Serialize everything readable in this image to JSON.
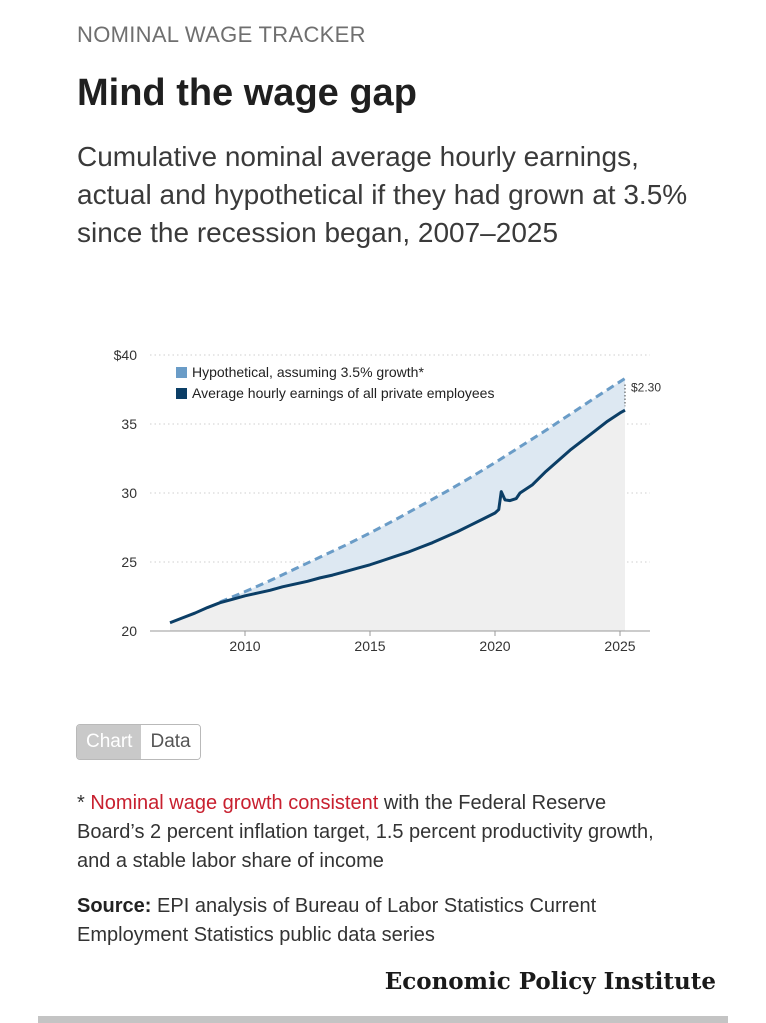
{
  "header": {
    "kicker": "NOMINAL WAGE TRACKER",
    "title": "Mind the wage gap",
    "subtitle": "Cumulative nominal average hourly earnings, actual and hypothetical if they had grown at 3.5% since the recession began, 2007–2025"
  },
  "toggle": {
    "chart_label": "Chart",
    "data_label": "Data"
  },
  "footnote": {
    "marker": "* ",
    "link_text": "Nominal wage growth consistent",
    "rest": " with the Federal Reserve Board’s 2 percent inflation target, 1.5 percent productivity growth, and a stable labor share of income"
  },
  "source": {
    "label": "Source:",
    "text": " EPI analysis of Bureau of Labor Statistics Current Employment Statistics public data series"
  },
  "brand": "Economic Policy Institute",
  "colors": {
    "hypothetical": "#6a9cc7",
    "actual": "#0b3e66",
    "gap_fill": "#dde8f2",
    "under_fill": "#efefef"
  },
  "chart_data": {
    "type": "line",
    "title": "",
    "xlabel": "",
    "ylabel": "",
    "xlim": [
      2006.2,
      2026.2
    ],
    "ylim": [
      20,
      40
    ],
    "x_ticks": [
      2010,
      2015,
      2020,
      2025
    ],
    "x_tick_labels": [
      "2010",
      "2015",
      "2020",
      "2025"
    ],
    "y_ticks": [
      20,
      25,
      30,
      35,
      40
    ],
    "y_tick_labels": [
      "20",
      "25",
      "30",
      "35",
      "$40"
    ],
    "legend": [
      {
        "name": "Hypothetical, assuming 3.5% growth*",
        "color": "#6a9cc7",
        "style": "dashed"
      },
      {
        "name": "Average hourly earnings of all private employees",
        "color": "#0b3e66",
        "style": "solid"
      }
    ],
    "annotation": {
      "text": "$2.30",
      "x": 2025.2
    },
    "series": [
      {
        "name": "Hypothetical, assuming 3.5% growth*",
        "style": "dashed",
        "x": [
          2009.0,
          2010.0,
          2011.0,
          2012.0,
          2013.0,
          2014.0,
          2015.0,
          2016.0,
          2017.0,
          2018.0,
          2019.0,
          2020.0,
          2021.0,
          2022.0,
          2023.0,
          2024.0,
          2025.2
        ],
        "values": [
          22.1,
          22.85,
          23.65,
          24.5,
          25.35,
          26.2,
          27.1,
          28.05,
          29.05,
          30.05,
          31.1,
          32.2,
          33.35,
          34.5,
          35.7,
          36.9,
          38.3
        ]
      },
      {
        "name": "Average hourly earnings of all private employees",
        "style": "solid",
        "x": [
          2007.0,
          2007.5,
          2008.0,
          2008.5,
          2009.0,
          2009.5,
          2010.0,
          2010.5,
          2011.0,
          2011.5,
          2012.0,
          2012.5,
          2013.0,
          2013.5,
          2014.0,
          2014.5,
          2015.0,
          2015.5,
          2016.0,
          2016.5,
          2017.0,
          2017.5,
          2018.0,
          2018.5,
          2019.0,
          2019.5,
          2020.0,
          2020.15,
          2020.25,
          2020.4,
          2020.6,
          2020.85,
          2021.0,
          2021.5,
          2022.0,
          2022.5,
          2023.0,
          2023.5,
          2024.0,
          2024.5,
          2025.0,
          2025.2
        ],
        "values": [
          20.6,
          20.95,
          21.3,
          21.7,
          22.05,
          22.3,
          22.55,
          22.75,
          22.95,
          23.2,
          23.4,
          23.6,
          23.85,
          24.05,
          24.3,
          24.55,
          24.8,
          25.1,
          25.4,
          25.7,
          26.05,
          26.4,
          26.8,
          27.2,
          27.65,
          28.1,
          28.55,
          28.8,
          30.1,
          29.5,
          29.45,
          29.6,
          30.0,
          30.6,
          31.5,
          32.3,
          33.1,
          33.8,
          34.5,
          35.2,
          35.8,
          36.0
        ]
      }
    ]
  }
}
